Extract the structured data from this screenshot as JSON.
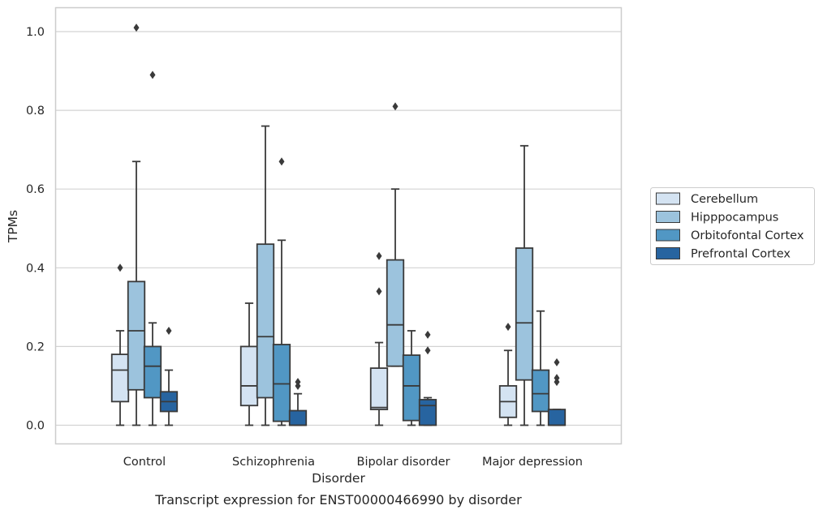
{
  "chart_data": {
    "type": "box",
    "xlabel": "Disorder",
    "ylabel": "TPMs",
    "caption": "Transcript expression for ENST00000466990 by disorder",
    "ylim": [
      -0.05,
      1.06
    ],
    "yticks": [
      "0.0",
      "0.2",
      "0.4",
      "0.6",
      "0.8",
      "1.0"
    ],
    "grid": "horizontal",
    "legend_position": "right",
    "categories": [
      "Control",
      "Schizophrenia",
      "Bipolar disorder",
      "Major depression"
    ],
    "series": [
      {
        "name": "Cerebellum",
        "color": "#d4e3f2",
        "boxes": [
          {
            "whislo": 0.0,
            "q1": 0.06,
            "med": 0.14,
            "q3": 0.18,
            "whishi": 0.24,
            "fliers": [
              0.4
            ]
          },
          {
            "whislo": 0.0,
            "q1": 0.05,
            "med": 0.1,
            "q3": 0.2,
            "whishi": 0.31,
            "fliers": []
          },
          {
            "whislo": 0.0,
            "q1": 0.04,
            "med": 0.045,
            "q3": 0.145,
            "whishi": 0.21,
            "fliers": [
              0.34,
              0.43
            ]
          },
          {
            "whislo": 0.0,
            "q1": 0.02,
            "med": 0.06,
            "q3": 0.1,
            "whishi": 0.19,
            "fliers": [
              0.25
            ]
          }
        ]
      },
      {
        "name": "Hipppocampus",
        "color": "#9cc3dd",
        "boxes": [
          {
            "whislo": 0.0,
            "q1": 0.09,
            "med": 0.24,
            "q3": 0.365,
            "whishi": 0.67,
            "fliers": [
              1.01
            ]
          },
          {
            "whislo": 0.0,
            "q1": 0.07,
            "med": 0.225,
            "q3": 0.46,
            "whishi": 0.76,
            "fliers": []
          },
          {
            "whislo": 0.15,
            "q1": 0.15,
            "med": 0.255,
            "q3": 0.42,
            "whishi": 0.6,
            "fliers": [
              0.81
            ]
          },
          {
            "whislo": 0.0,
            "q1": 0.115,
            "med": 0.26,
            "q3": 0.45,
            "whishi": 0.71,
            "fliers": []
          }
        ]
      },
      {
        "name": "Orbitofontal Cortex",
        "color": "#5197c4",
        "boxes": [
          {
            "whislo": 0.0,
            "q1": 0.07,
            "med": 0.15,
            "q3": 0.2,
            "whishi": 0.26,
            "fliers": [
              0.89
            ]
          },
          {
            "whislo": 0.0,
            "q1": 0.01,
            "med": 0.105,
            "q3": 0.205,
            "whishi": 0.47,
            "fliers": [
              0.67
            ]
          },
          {
            "whislo": 0.0,
            "q1": 0.012,
            "med": 0.1,
            "q3": 0.178,
            "whishi": 0.24,
            "fliers": []
          },
          {
            "whislo": 0.0,
            "q1": 0.035,
            "med": 0.08,
            "q3": 0.14,
            "whishi": 0.29,
            "fliers": []
          }
        ]
      },
      {
        "name": "Prefrontal Cortex",
        "color": "#2764a0",
        "boxes": [
          {
            "whislo": 0.0,
            "q1": 0.035,
            "med": 0.06,
            "q3": 0.085,
            "whishi": 0.14,
            "fliers": [
              0.24
            ]
          },
          {
            "whislo": 0.0,
            "q1": 0.0,
            "med": 0.0,
            "q3": 0.037,
            "whishi": 0.08,
            "fliers": [
              0.1,
              0.11
            ]
          },
          {
            "whislo": 0.0,
            "q1": 0.0,
            "med": 0.05,
            "q3": 0.065,
            "whishi": 0.07,
            "fliers": [
              0.19,
              0.23
            ]
          },
          {
            "whislo": 0.0,
            "q1": 0.0,
            "med": 0.0,
            "q3": 0.04,
            "whishi": 0.04,
            "fliers": [
              0.11,
              0.12,
              0.16
            ]
          }
        ]
      }
    ]
  }
}
